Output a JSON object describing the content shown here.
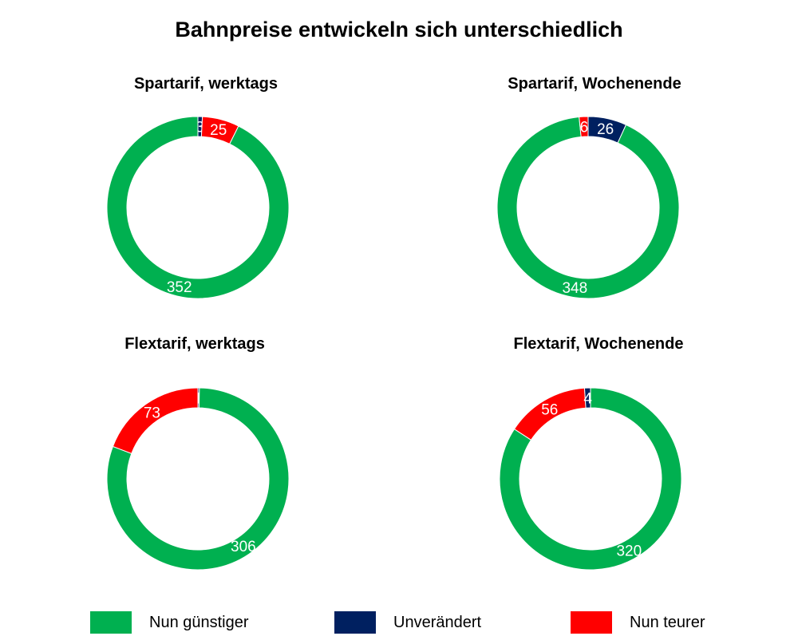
{
  "colors": {
    "nun_guenstiger": "#00b050",
    "unveraendert": "#002060",
    "nun_teurer": "#ff0000"
  },
  "chart_data": {
    "title": "Bahnpreise entwickeln sich unterschiedlich",
    "legend": [
      {
        "key": "nun_guenstiger",
        "label": "Nun günstiger"
      },
      {
        "key": "unveraendert",
        "label": "Unverändert"
      },
      {
        "key": "nun_teurer",
        "label": "Nun teurer"
      }
    ],
    "charts": [
      {
        "type": "pie",
        "title": "Spartarif, werktags",
        "slices": [
          {
            "key": "unveraendert",
            "value": 3
          },
          {
            "key": "nun_teurer",
            "value": 25
          },
          {
            "key": "nun_guenstiger",
            "value": 352
          }
        ]
      },
      {
        "type": "pie",
        "title": "Spartarif, Wochenende",
        "slices": [
          {
            "key": "unveraendert",
            "value": 26
          },
          {
            "key": "nun_guenstiger",
            "value": 348
          },
          {
            "key": "nun_teurer",
            "value": 6
          }
        ]
      },
      {
        "type": "pie",
        "title": "Flextarif, werktags",
        "slices": [
          {
            "key": "unveraendert",
            "value": 1
          },
          {
            "key": "nun_guenstiger",
            "value": 306
          },
          {
            "key": "nun_teurer",
            "value": 73
          }
        ]
      },
      {
        "type": "pie",
        "title": "Flextarif, Wochenende",
        "slices": [
          {
            "key": "nun_guenstiger",
            "value": 320
          },
          {
            "key": "nun_teurer",
            "value": 56
          },
          {
            "key": "unveraendert",
            "value": 4
          }
        ]
      }
    ]
  }
}
